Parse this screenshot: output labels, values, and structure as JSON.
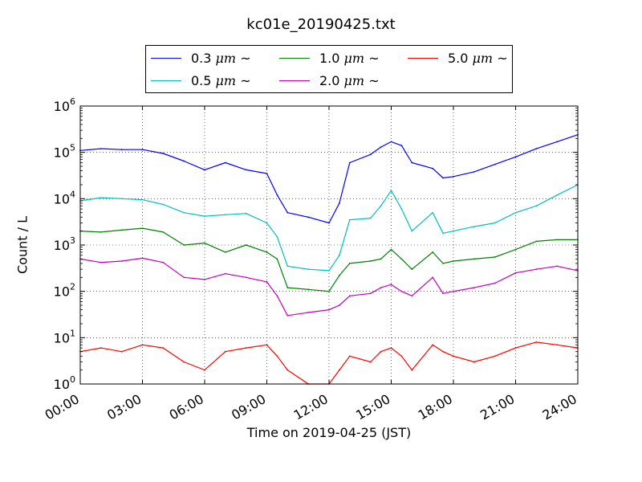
{
  "chart_data": {
    "type": "line",
    "title": "kc01e_20190425.txt",
    "xlabel": "Time on 2019-04-25 (JST)",
    "ylabel": "Count / L",
    "yscale": "log",
    "ylim": [
      1,
      1000000
    ],
    "xlim": [
      "00:00",
      "24:00"
    ],
    "x_ticks": [
      "00:00",
      "03:00",
      "06:00",
      "09:00",
      "12:00",
      "15:00",
      "18:00",
      "21:00",
      "24:00"
    ],
    "y_tick_exponents": [
      "0",
      "1",
      "2",
      "3",
      "4",
      "5",
      "6"
    ],
    "y_tick_base": "10",
    "grid": true,
    "legend_position": "top-center",
    "x": [
      "00:00",
      "01:00",
      "02:00",
      "03:00",
      "04:00",
      "05:00",
      "06:00",
      "07:00",
      "08:00",
      "09:00",
      "09:30",
      "10:00",
      "11:00",
      "12:00",
      "12:30",
      "13:00",
      "14:00",
      "14:30",
      "15:00",
      "15:30",
      "16:00",
      "17:00",
      "17:30",
      "18:00",
      "19:00",
      "20:00",
      "21:00",
      "22:00",
      "23:00",
      "24:00"
    ],
    "series": [
      {
        "name_prefix": "0.3 ",
        "name_unit": "μm",
        "name_suffix": " ~",
        "color": "#0000ff",
        "values": [
          110000,
          120000,
          115000,
          115000,
          95000,
          65000,
          42000,
          60000,
          42000,
          35000,
          12000,
          5000,
          4000,
          3000,
          8000,
          60000,
          90000,
          130000,
          170000,
          140000,
          60000,
          45000,
          28000,
          30000,
          38000,
          55000,
          80000,
          120000,
          170000,
          240000
        ]
      },
      {
        "name_prefix": "0.5 ",
        "name_unit": "μm",
        "name_suffix": " ~",
        "color": "#00bfbf",
        "values": [
          9000,
          10500,
          10000,
          9500,
          7500,
          5000,
          4200,
          4500,
          4800,
          3000,
          1500,
          350,
          300,
          280,
          600,
          3500,
          3800,
          7000,
          15000,
          6000,
          2000,
          5000,
          1800,
          2000,
          2500,
          3000,
          5000,
          7000,
          12000,
          20000
        ]
      },
      {
        "name_prefix": "1.0 ",
        "name_unit": "μm",
        "name_suffix": " ~",
        "color": "#008000",
        "values": [
          2000,
          1900,
          2100,
          2300,
          1900,
          1000,
          1100,
          700,
          1000,
          700,
          500,
          120,
          110,
          100,
          220,
          400,
          450,
          500,
          800,
          500,
          300,
          700,
          400,
          450,
          500,
          550,
          800,
          1200,
          1300,
          1300
        ]
      },
      {
        "name_prefix": "2.0 ",
        "name_unit": "μm",
        "name_suffix": " ~",
        "color": "#bf00bf",
        "values": [
          500,
          420,
          450,
          520,
          420,
          200,
          180,
          240,
          200,
          160,
          80,
          30,
          35,
          40,
          50,
          80,
          90,
          120,
          140,
          100,
          80,
          200,
          90,
          100,
          120,
          150,
          250,
          300,
          350,
          280
        ]
      },
      {
        "name_prefix": "5.0 ",
        "name_unit": "μm",
        "name_suffix": " ~",
        "color": "#ff0000",
        "values": [
          5,
          6,
          5,
          7,
          6,
          3,
          2,
          5,
          6,
          7,
          4,
          2,
          1,
          1,
          2,
          4,
          3,
          5,
          6,
          4,
          2,
          7,
          5,
          4,
          3,
          4,
          6,
          8,
          7,
          6
        ]
      }
    ]
  }
}
